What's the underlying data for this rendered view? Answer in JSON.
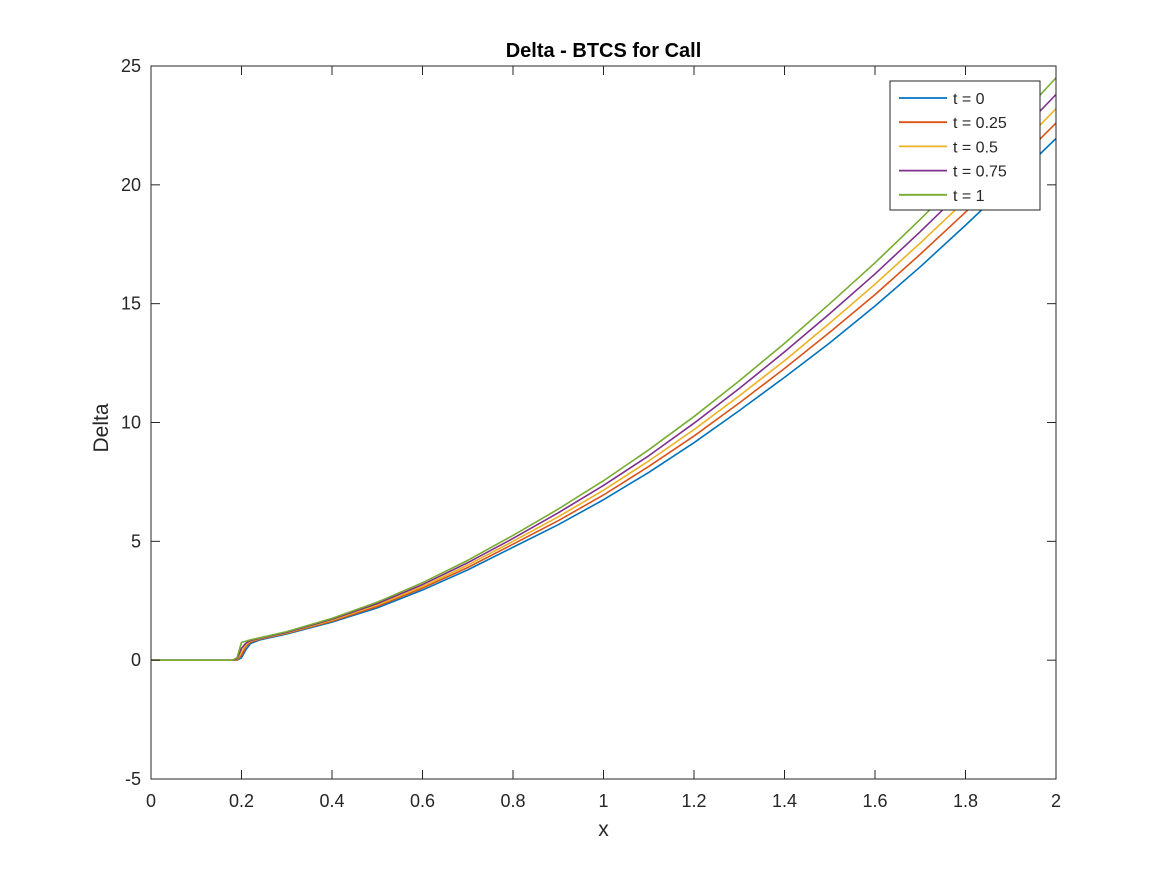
{
  "chart_data": {
    "type": "line",
    "title": "Delta - BTCS for Call",
    "xlabel": "x",
    "ylabel": "Delta",
    "xlim": [
      0,
      2
    ],
    "ylim": [
      -5,
      25
    ],
    "xticks": [
      0,
      0.2,
      0.4,
      0.6,
      0.8,
      1,
      1.2,
      1.4,
      1.6,
      1.8,
      2
    ],
    "xtick_labels": [
      "0",
      "0.2",
      "0.4",
      "0.6",
      "0.8",
      "1",
      "1.2",
      "1.4",
      "1.6",
      "1.8",
      "2"
    ],
    "yticks": [
      -5,
      0,
      5,
      10,
      15,
      20,
      25
    ],
    "ytick_labels": [
      "-5",
      "0",
      "5",
      "10",
      "15",
      "20",
      "25"
    ],
    "grid": false,
    "legend_position": "top-right",
    "x": [
      0,
      0.18,
      0.19,
      0.2,
      0.21,
      0.22,
      0.24,
      0.3,
      0.4,
      0.5,
      0.6,
      0.7,
      0.8,
      0.9,
      1.0,
      1.1,
      1.2,
      1.3,
      1.4,
      1.5,
      1.6,
      1.7,
      1.8,
      1.9,
      2.0
    ],
    "series": [
      {
        "name": "t = 0",
        "color": "#0072BD",
        "values": [
          0,
          0,
          0,
          0.1,
          0.45,
          0.7,
          0.85,
          1.1,
          1.6,
          2.2,
          2.95,
          3.8,
          4.75,
          5.7,
          6.75,
          7.9,
          9.15,
          10.5,
          11.9,
          13.35,
          14.9,
          16.55,
          18.3,
          20.1,
          21.95
        ]
      },
      {
        "name": "t = 0.25",
        "color": "#D95319",
        "values": [
          0,
          0,
          0,
          0.2,
          0.58,
          0.76,
          0.88,
          1.13,
          1.64,
          2.26,
          3.03,
          3.9,
          4.88,
          5.87,
          6.95,
          8.15,
          9.43,
          10.82,
          12.27,
          13.8,
          15.38,
          17.08,
          18.85,
          20.7,
          22.6
        ]
      },
      {
        "name": "t = 0.5",
        "color": "#EDB120",
        "values": [
          0,
          0,
          0.02,
          0.35,
          0.65,
          0.8,
          0.9,
          1.15,
          1.68,
          2.32,
          3.1,
          4.0,
          5.0,
          6.03,
          7.15,
          8.38,
          9.7,
          11.12,
          12.6,
          14.18,
          15.82,
          17.55,
          19.35,
          21.25,
          23.2
        ]
      },
      {
        "name": "t = 0.75",
        "color": "#7E2F8E",
        "values": [
          0,
          0,
          0.05,
          0.5,
          0.72,
          0.83,
          0.92,
          1.17,
          1.72,
          2.38,
          3.18,
          4.1,
          5.12,
          6.2,
          7.35,
          8.6,
          9.97,
          11.43,
          12.97,
          14.58,
          16.25,
          18.03,
          19.88,
          21.82,
          23.8
        ]
      },
      {
        "name": "t = 1",
        "color": "#77AC30",
        "values": [
          0,
          0,
          0.1,
          0.75,
          0.8,
          0.86,
          0.94,
          1.2,
          1.76,
          2.44,
          3.26,
          4.2,
          5.25,
          6.36,
          7.55,
          8.85,
          10.25,
          11.75,
          13.33,
          15.0,
          16.72,
          18.55,
          20.45,
          22.45,
          24.5
        ]
      }
    ]
  }
}
